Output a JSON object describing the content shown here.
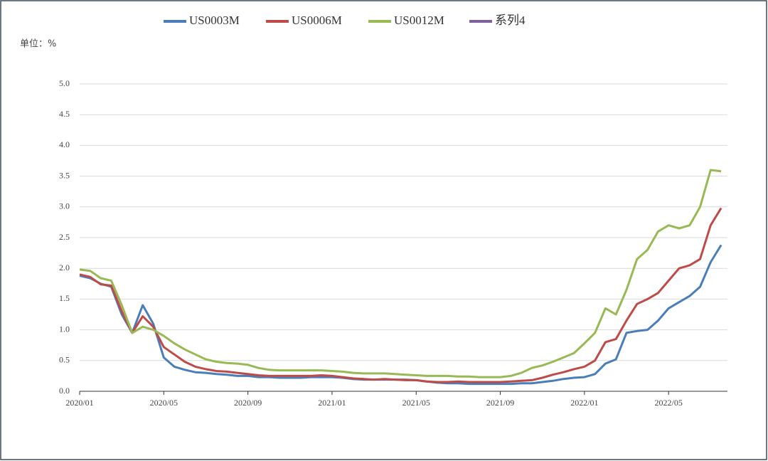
{
  "chart_data": {
    "type": "line",
    "unit_label": "单位：%",
    "categories": [
      "2020/01",
      null,
      null,
      null,
      null,
      null,
      null,
      null,
      "2020/05",
      null,
      null,
      null,
      null,
      null,
      null,
      null,
      "2020/09",
      null,
      null,
      null,
      null,
      null,
      null,
      null,
      "2021/01",
      null,
      null,
      null,
      null,
      null,
      null,
      null,
      "2021/05",
      null,
      null,
      null,
      null,
      null,
      null,
      null,
      "2021/09",
      null,
      null,
      null,
      null,
      null,
      null,
      null,
      "2022/01",
      null,
      null,
      null,
      null,
      null,
      null,
      null,
      "2022/05",
      null,
      null,
      null,
      null,
      null
    ],
    "series": [
      {
        "name": "US0003M",
        "color": "#4a7ebb",
        "values": [
          1.88,
          1.84,
          1.75,
          1.7,
          1.25,
          0.95,
          1.4,
          1.1,
          0.55,
          0.4,
          0.35,
          0.31,
          0.3,
          0.28,
          0.27,
          0.25,
          0.25,
          0.23,
          0.23,
          0.22,
          0.22,
          0.22,
          0.23,
          0.23,
          0.23,
          0.22,
          0.2,
          0.19,
          0.19,
          0.19,
          0.19,
          0.19,
          0.18,
          0.16,
          0.14,
          0.13,
          0.13,
          0.12,
          0.12,
          0.12,
          0.12,
          0.12,
          0.13,
          0.13,
          0.15,
          0.17,
          0.2,
          0.22,
          0.23,
          0.28,
          0.45,
          0.52,
          0.95,
          0.98,
          1.0,
          1.15,
          1.35,
          1.45,
          1.55,
          1.7,
          2.1,
          2.38
        ]
      },
      {
        "name": "US0006M",
        "color": "#be4b48",
        "values": [
          1.9,
          1.86,
          1.74,
          1.72,
          1.3,
          0.95,
          1.22,
          1.05,
          0.72,
          0.6,
          0.48,
          0.4,
          0.36,
          0.33,
          0.32,
          0.3,
          0.28,
          0.26,
          0.25,
          0.25,
          0.25,
          0.25,
          0.25,
          0.26,
          0.25,
          0.23,
          0.21,
          0.2,
          0.19,
          0.2,
          0.19,
          0.18,
          0.18,
          0.16,
          0.15,
          0.15,
          0.16,
          0.15,
          0.15,
          0.15,
          0.15,
          0.16,
          0.17,
          0.18,
          0.22,
          0.27,
          0.31,
          0.36,
          0.4,
          0.5,
          0.8,
          0.85,
          1.15,
          1.42,
          1.5,
          1.6,
          1.8,
          2.0,
          2.05,
          2.15,
          2.7,
          2.98
        ]
      },
      {
        "name": "US0012M",
        "color": "#98b954",
        "values": [
          1.98,
          1.96,
          1.84,
          1.8,
          1.4,
          0.95,
          1.05,
          1.0,
          0.9,
          0.78,
          0.68,
          0.6,
          0.52,
          0.48,
          0.46,
          0.45,
          0.43,
          0.38,
          0.35,
          0.34,
          0.34,
          0.34,
          0.34,
          0.34,
          0.33,
          0.32,
          0.3,
          0.29,
          0.29,
          0.29,
          0.28,
          0.27,
          0.26,
          0.25,
          0.25,
          0.25,
          0.24,
          0.24,
          0.23,
          0.23,
          0.23,
          0.25,
          0.3,
          0.38,
          0.42,
          0.48,
          0.55,
          0.62,
          0.78,
          0.95,
          1.35,
          1.25,
          1.65,
          2.15,
          2.3,
          2.6,
          2.7,
          2.65,
          2.7,
          3.0,
          3.6,
          3.58
        ]
      },
      {
        "name": "系列4",
        "color": "#7d60a0",
        "values": [
          null,
          null,
          null,
          null,
          null,
          null,
          null,
          null,
          null,
          null,
          null,
          null,
          null,
          null,
          null,
          null,
          null,
          null,
          null,
          null,
          null,
          null,
          null,
          null,
          null,
          null,
          null,
          null,
          null,
          null,
          null,
          null,
          null,
          null,
          null,
          null,
          null,
          null,
          null,
          null,
          null,
          null,
          null,
          null,
          null,
          null,
          null,
          null,
          null,
          null,
          null,
          null,
          null,
          null,
          null,
          null,
          null,
          null,
          null,
          null,
          null,
          null
        ]
      }
    ],
    "ylim": [
      0,
      5
    ],
    "yticks": [
      {
        "value": 0,
        "label": "0.0"
      },
      {
        "value": 0.5,
        "label": "0.5"
      },
      {
        "value": 1,
        "label": "1.0"
      },
      {
        "value": 1.5,
        "label": "1.5"
      },
      {
        "value": 2,
        "label": "2.0"
      },
      {
        "value": 2.5,
        "label": "2.5"
      },
      {
        "value": 3,
        "label": "3.0"
      },
      {
        "value": 3.5,
        "label": "3.5"
      },
      {
        "value": 4,
        "label": "4.0"
      },
      {
        "value": 4.5,
        "label": "4.5"
      },
      {
        "value": 5,
        "label": "5.0"
      }
    ],
    "grid": true
  }
}
